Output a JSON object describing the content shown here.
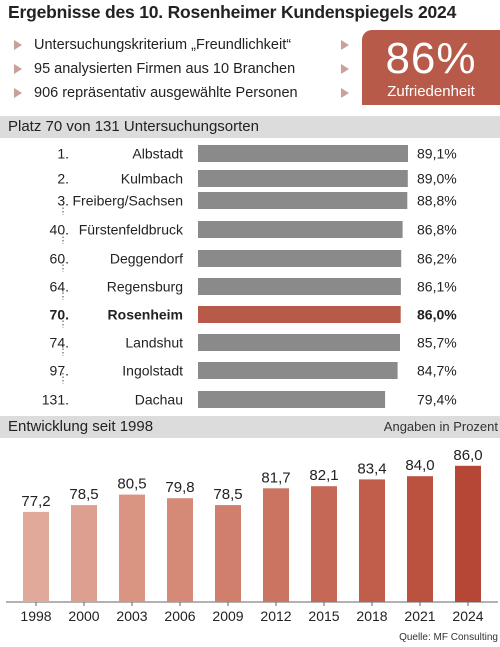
{
  "header": {
    "title": "Ergebnisse des 10. Rosenheimer Kundenspiegels  2024",
    "bullets": [
      "Untersuchungskriterium „Freundlichkeit“",
      "95 analysierten Firmen aus 10 Branchen",
      "906 repräsentativ ausgewählte Personen"
    ],
    "kpi_value": "86%",
    "kpi_label": "Zufriedenheit"
  },
  "section_rank": "Platz 70 von 131 Untersuchungsorten",
  "section_dev": "Entwicklung seit 1998",
  "dev_note": "Angaben in Prozent",
  "source": "Quelle: MF Consulting",
  "colors": {
    "accent": "#b85a4a",
    "bar_gray": "#8a8a8a",
    "section_bg": "#dcdcdc"
  },
  "chart_data": [
    {
      "type": "bar",
      "orientation": "horizontal",
      "highlight": "Rosenheim",
      "categories": [
        "Albstadt",
        "Kulmbach",
        "Freiberg/Sachsen",
        "Fürstenfeldbruck",
        "Deggendorf",
        "Regensburg",
        "Rosenheim",
        "Landshut",
        "Ingolstadt",
        "Dachau"
      ],
      "ranks": [
        "1.",
        "2.",
        "3.",
        "40.",
        "60.",
        "64.",
        "70.",
        "74.",
        "97.",
        "131."
      ],
      "values": [
        89.1,
        89.0,
        88.8,
        86.8,
        86.2,
        86.1,
        86.0,
        85.7,
        84.7,
        79.4
      ],
      "value_labels": [
        "89,1%",
        "89,0%",
        "88,8%",
        "86,8%",
        "86,2%",
        "86,1%",
        "86,0%",
        "85,7%",
        "84,7%",
        "79,4%"
      ]
    },
    {
      "type": "bar",
      "categories": [
        "1998",
        "2000",
        "2003",
        "2006",
        "2009",
        "2012",
        "2015",
        "2018",
        "2021",
        "2024"
      ],
      "values": [
        77.2,
        78.5,
        80.5,
        79.8,
        78.5,
        81.7,
        82.1,
        83.4,
        84.0,
        86.0
      ],
      "value_labels": [
        "77,2",
        "78,5",
        "80,5",
        "79,8",
        "78,5",
        "81,7",
        "82,1",
        "83,4",
        "84,0",
        "86,0"
      ],
      "colors": [
        "#e0a99a",
        "#dd9f8f",
        "#d99482",
        "#d48a77",
        "#cf7f6c",
        "#ca7461",
        "#c56956",
        "#c05d4b",
        "#bb5240",
        "#b64636"
      ]
    }
  ]
}
